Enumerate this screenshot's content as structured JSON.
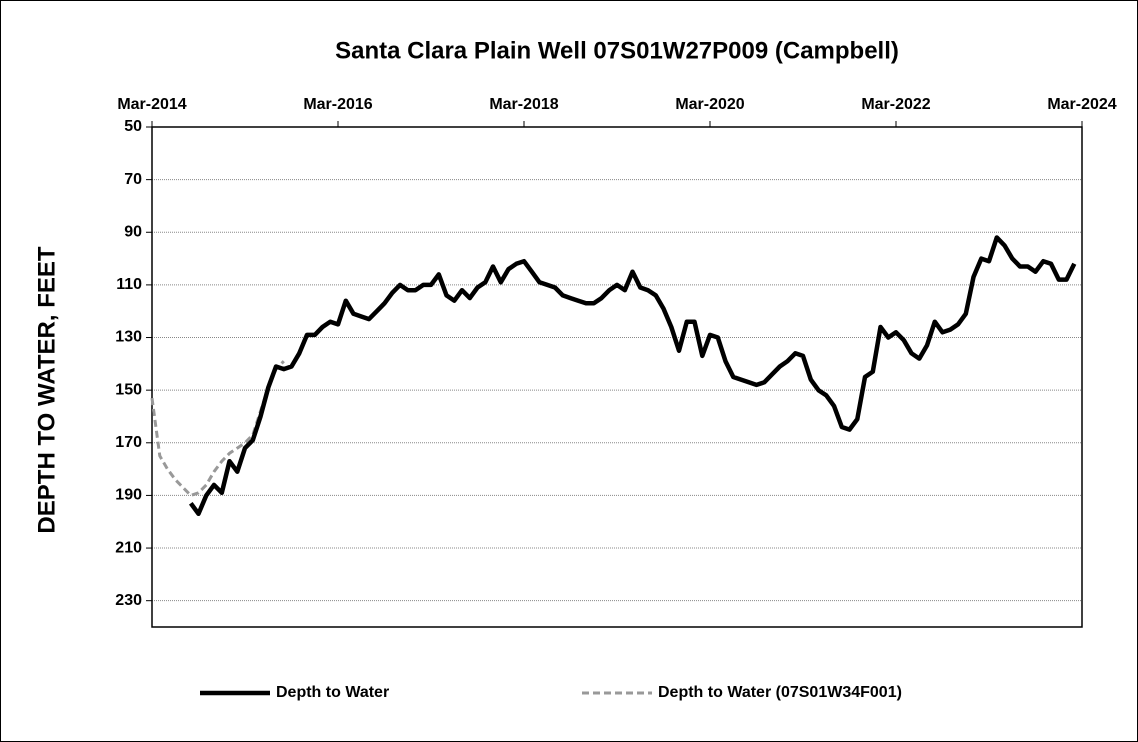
{
  "chart_data": {
    "type": "line",
    "title": "Santa Clara Plain Well 07S01W27P009  (Campbell)",
    "y_label": "DEPTH TO WATER, FEET",
    "y_inverted": true,
    "grid": true,
    "legend": "bottom",
    "xlim": [
      "2014-03",
      "2024-03"
    ],
    "xticks": [
      {
        "value": "2014-03",
        "label": "Mar-2014"
      },
      {
        "value": "2016-03",
        "label": "Mar-2016"
      },
      {
        "value": "2018-03",
        "label": "Mar-2018"
      },
      {
        "value": "2020-03",
        "label": "Mar-2020"
      },
      {
        "value": "2022-03",
        "label": "Mar-2022"
      },
      {
        "value": "2024-03",
        "label": "Mar-2024"
      }
    ],
    "ylim": [
      50,
      240
    ],
    "yticks": [
      50,
      70,
      90,
      110,
      130,
      150,
      170,
      190,
      210,
      230
    ],
    "series": [
      {
        "name": "Depth to Water",
        "color": "#000000",
        "dash": false,
        "x": [
          "2014-08",
          "2014-09",
          "2014-10",
          "2014-11",
          "2014-12",
          "2015-01",
          "2015-02",
          "2015-03",
          "2015-04",
          "2015-05",
          "2015-06",
          "2015-07",
          "2015-08",
          "2015-09",
          "2015-10",
          "2015-11",
          "2015-12",
          "2016-01",
          "2016-02",
          "2016-03",
          "2016-04",
          "2016-05",
          "2016-06",
          "2016-07",
          "2016-08",
          "2016-09",
          "2016-10",
          "2016-11",
          "2016-12",
          "2017-01",
          "2017-02",
          "2017-03",
          "2017-04",
          "2017-05",
          "2017-06",
          "2017-07",
          "2017-08",
          "2017-09",
          "2017-10",
          "2017-11",
          "2017-12",
          "2018-01",
          "2018-02",
          "2018-03",
          "2018-04",
          "2018-05",
          "2018-06",
          "2018-07",
          "2018-08",
          "2018-09",
          "2018-10",
          "2018-11",
          "2018-12",
          "2019-01",
          "2019-02",
          "2019-03",
          "2019-04",
          "2019-05",
          "2019-06",
          "2019-07",
          "2019-08",
          "2019-09",
          "2019-10",
          "2019-11",
          "2019-12",
          "2020-01",
          "2020-02",
          "2020-03",
          "2020-04",
          "2020-05",
          "2020-06",
          "2020-07",
          "2020-08",
          "2020-09",
          "2020-10",
          "2020-11",
          "2020-12",
          "2021-01",
          "2021-02",
          "2021-03",
          "2021-04",
          "2021-05",
          "2021-06",
          "2021-07",
          "2021-08",
          "2021-09",
          "2021-10",
          "2021-11",
          "2021-12",
          "2022-01",
          "2022-02",
          "2022-03",
          "2022-04",
          "2022-05",
          "2022-06",
          "2022-07",
          "2022-08",
          "2022-09",
          "2022-10",
          "2022-11",
          "2022-12",
          "2023-01",
          "2023-02",
          "2023-03",
          "2023-04",
          "2023-05",
          "2023-06",
          "2023-07",
          "2023-08",
          "2023-09",
          "2023-10",
          "2023-11",
          "2023-12",
          "2024-01",
          "2024-02"
        ],
        "values": [
          193,
          197,
          190,
          186,
          189,
          177,
          181,
          172,
          169,
          160,
          149,
          141,
          142,
          141,
          136,
          129,
          129,
          126,
          124,
          125,
          116,
          121,
          122,
          123,
          120,
          117,
          113,
          110,
          112,
          112,
          110,
          110,
          106,
          114,
          116,
          112,
          115,
          111,
          109,
          103,
          109,
          104,
          102,
          101,
          105,
          109,
          110,
          111,
          114,
          115,
          116,
          117,
          117,
          115,
          112,
          110,
          112,
          105,
          111,
          112,
          114,
          119,
          126,
          135,
          124,
          124,
          137,
          129,
          130,
          139,
          145,
          146,
          147,
          148,
          147,
          144,
          141,
          139,
          136,
          137,
          146,
          150,
          152,
          156,
          164,
          165,
          161,
          145,
          143,
          126,
          130,
          128,
          131,
          136,
          138,
          133,
          124,
          128,
          127,
          125,
          121,
          107,
          100,
          101,
          92,
          95,
          100,
          103,
          103,
          105,
          101,
          102,
          108,
          108,
          102
        ]
      },
      {
        "name": "Depth to Water (07S01W34F001)",
        "color": "#999999",
        "dash": true,
        "x": [
          "2014-03",
          "2014-04",
          "2014-05",
          "2014-06",
          "2014-07",
          "2014-08",
          "2014-09",
          "2014-10",
          "2014-11",
          "2014-12",
          "2015-01",
          "2015-02",
          "2015-03",
          "2015-04",
          "2015-05",
          "2015-06",
          "2015-07",
          "2015-08"
        ],
        "values": [
          153,
          175,
          180,
          184,
          187,
          190,
          189,
          186,
          181,
          177,
          174,
          172,
          170,
          167,
          158,
          149,
          142,
          139
        ]
      }
    ]
  }
}
